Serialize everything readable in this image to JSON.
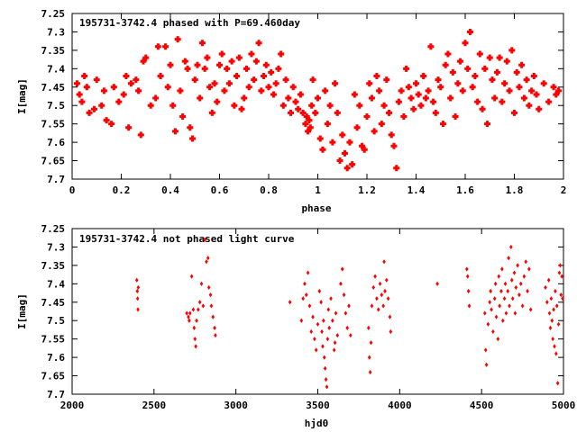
{
  "chart_data": [
    {
      "type": "scatter",
      "title": "195731-3742.4 phased with P=69.460day",
      "xlabel": "phase",
      "ylabel": "I[mag]",
      "xlim": [
        0,
        2
      ],
      "ylim": [
        7.25,
        7.7
      ],
      "y_inverted": true,
      "grid": false,
      "marker": "star",
      "color": "#ff0000",
      "xticks": [
        "0",
        "0.2",
        "0.4",
        "0.6",
        "0.8",
        "1",
        "1.2",
        "1.4",
        "1.6",
        "1.8",
        "2"
      ],
      "xtick_values": [
        0,
        0.2,
        0.4,
        0.6,
        0.8,
        1,
        1.2,
        1.4,
        1.6,
        1.8,
        2
      ],
      "yticks": [
        "7.25",
        "7.3",
        "7.35",
        "7.4",
        "7.45",
        "7.5",
        "7.55",
        "7.6",
        "7.65",
        "7.7"
      ],
      "ytick_values": [
        7.25,
        7.3,
        7.35,
        7.4,
        7.45,
        7.5,
        7.55,
        7.6,
        7.65,
        7.7
      ],
      "points": [
        [
          0.02,
          7.44
        ],
        [
          0.03,
          7.47
        ],
        [
          0.04,
          7.49
        ],
        [
          0.05,
          7.42
        ],
        [
          0.06,
          7.45
        ],
        [
          0.07,
          7.52
        ],
        [
          0.09,
          7.51
        ],
        [
          0.1,
          7.43
        ],
        [
          0.12,
          7.5
        ],
        [
          0.13,
          7.46
        ],
        [
          0.14,
          7.54
        ],
        [
          0.16,
          7.55
        ],
        [
          0.17,
          7.45
        ],
        [
          0.19,
          7.49
        ],
        [
          0.21,
          7.47
        ],
        [
          0.22,
          7.42
        ],
        [
          0.23,
          7.56
        ],
        [
          0.24,
          7.44
        ],
        [
          0.26,
          7.43
        ],
        [
          0.27,
          7.46
        ],
        [
          0.28,
          7.58
        ],
        [
          0.29,
          7.38
        ],
        [
          0.3,
          7.37
        ],
        [
          0.32,
          7.5
        ],
        [
          0.34,
          7.48
        ],
        [
          0.35,
          7.34
        ],
        [
          0.36,
          7.42
        ],
        [
          0.38,
          7.34
        ],
        [
          0.39,
          7.45
        ],
        [
          0.4,
          7.39
        ],
        [
          0.41,
          7.5
        ],
        [
          0.42,
          7.57
        ],
        [
          0.43,
          7.32
        ],
        [
          0.44,
          7.46
        ],
        [
          0.45,
          7.53
        ],
        [
          0.46,
          7.38
        ],
        [
          0.47,
          7.4
        ],
        [
          0.48,
          7.56
        ],
        [
          0.49,
          7.59
        ],
        [
          0.5,
          7.43
        ],
        [
          0.51,
          7.39
        ],
        [
          0.52,
          7.48
        ],
        [
          0.53,
          7.33
        ],
        [
          0.54,
          7.4
        ],
        [
          0.55,
          7.37
        ],
        [
          0.56,
          7.45
        ],
        [
          0.57,
          7.52
        ],
        [
          0.58,
          7.44
        ],
        [
          0.59,
          7.49
        ],
        [
          0.6,
          7.39
        ],
        [
          0.61,
          7.36
        ],
        [
          0.62,
          7.46
        ],
        [
          0.63,
          7.4
        ],
        [
          0.64,
          7.44
        ],
        [
          0.65,
          7.38
        ],
        [
          0.66,
          7.5
        ],
        [
          0.67,
          7.42
        ],
        [
          0.68,
          7.37
        ],
        [
          0.69,
          7.51
        ],
        [
          0.7,
          7.48
        ],
        [
          0.71,
          7.4
        ],
        [
          0.72,
          7.45
        ],
        [
          0.73,
          7.36
        ],
        [
          0.74,
          7.43
        ],
        [
          0.75,
          7.38
        ],
        [
          0.76,
          7.33
        ],
        [
          0.77,
          7.46
        ],
        [
          0.78,
          7.42
        ],
        [
          0.79,
          7.39
        ],
        [
          0.8,
          7.45
        ],
        [
          0.81,
          7.41
        ],
        [
          0.82,
          7.47
        ],
        [
          0.83,
          7.44
        ],
        [
          0.84,
          7.4
        ],
        [
          0.85,
          7.36
        ],
        [
          0.86,
          7.5
        ],
        [
          0.87,
          7.43
        ],
        [
          0.88,
          7.48
        ],
        [
          0.89,
          7.52
        ],
        [
          0.9,
          7.45
        ],
        [
          0.91,
          7.49
        ],
        [
          0.92,
          7.51
        ],
        [
          0.93,
          7.47
        ],
        [
          0.94,
          7.52
        ],
        [
          0.95,
          7.55
        ],
        [
          0.955,
          7.53
        ],
        [
          0.96,
          7.57
        ],
        [
          0.965,
          7.54
        ],
        [
          0.97,
          7.56
        ],
        [
          0.975,
          7.5
        ],
        [
          0.98,
          7.43
        ],
        [
          0.99,
          7.52
        ],
        [
          1.0,
          7.48
        ],
        [
          1.01,
          7.59
        ],
        [
          1.02,
          7.62
        ],
        [
          1.03,
          7.46
        ],
        [
          1.04,
          7.55
        ],
        [
          1.05,
          7.5
        ],
        [
          1.06,
          7.6
        ],
        [
          1.07,
          7.44
        ],
        [
          1.08,
          7.52
        ],
        [
          1.09,
          7.65
        ],
        [
          1.1,
          7.58
        ],
        [
          1.11,
          7.63
        ],
        [
          1.12,
          7.67
        ],
        [
          1.13,
          7.6
        ],
        [
          1.14,
          7.66
        ],
        [
          1.15,
          7.47
        ],
        [
          1.16,
          7.56
        ],
        [
          1.17,
          7.5
        ],
        [
          1.18,
          7.61
        ],
        [
          1.19,
          7.62
        ],
        [
          1.2,
          7.53
        ],
        [
          1.21,
          7.44
        ],
        [
          1.22,
          7.48
        ],
        [
          1.23,
          7.57
        ],
        [
          1.24,
          7.42
        ],
        [
          1.25,
          7.46
        ],
        [
          1.26,
          7.55
        ],
        [
          1.27,
          7.5
        ],
        [
          1.28,
          7.43
        ],
        [
          1.29,
          7.52
        ],
        [
          1.3,
          7.58
        ],
        [
          1.31,
          7.61
        ],
        [
          1.32,
          7.67
        ],
        [
          1.33,
          7.49
        ],
        [
          1.34,
          7.46
        ],
        [
          1.35,
          7.53
        ],
        [
          1.36,
          7.4
        ],
        [
          1.37,
          7.45
        ],
        [
          1.38,
          7.48
        ],
        [
          1.39,
          7.51
        ],
        [
          1.4,
          7.44
        ],
        [
          1.41,
          7.47
        ],
        [
          1.42,
          7.5
        ],
        [
          1.43,
          7.42
        ],
        [
          1.44,
          7.48
        ],
        [
          1.45,
          7.46
        ],
        [
          1.46,
          7.34
        ],
        [
          1.47,
          7.49
        ],
        [
          1.48,
          7.52
        ],
        [
          1.49,
          7.43
        ],
        [
          1.5,
          7.45
        ],
        [
          1.51,
          7.55
        ],
        [
          1.52,
          7.39
        ],
        [
          1.53,
          7.36
        ],
        [
          1.54,
          7.48
        ],
        [
          1.55,
          7.41
        ],
        [
          1.56,
          7.53
        ],
        [
          1.57,
          7.44
        ],
        [
          1.58,
          7.38
        ],
        [
          1.59,
          7.46
        ],
        [
          1.6,
          7.33
        ],
        [
          1.61,
          7.4
        ],
        [
          1.62,
          7.3
        ],
        [
          1.63,
          7.45
        ],
        [
          1.64,
          7.42
        ],
        [
          1.65,
          7.49
        ],
        [
          1.66,
          7.36
        ],
        [
          1.67,
          7.51
        ],
        [
          1.68,
          7.4
        ],
        [
          1.69,
          7.55
        ],
        [
          1.7,
          7.37
        ],
        [
          1.71,
          7.43
        ],
        [
          1.72,
          7.48
        ],
        [
          1.73,
          7.41
        ],
        [
          1.74,
          7.37
        ],
        [
          1.75,
          7.49
        ],
        [
          1.76,
          7.44
        ],
        [
          1.77,
          7.38
        ],
        [
          1.78,
          7.46
        ],
        [
          1.79,
          7.35
        ],
        [
          1.8,
          7.52
        ],
        [
          1.81,
          7.41
        ],
        [
          1.82,
          7.45
        ],
        [
          1.83,
          7.39
        ],
        [
          1.84,
          7.48
        ],
        [
          1.85,
          7.43
        ],
        [
          1.86,
          7.5
        ],
        [
          1.87,
          7.46
        ],
        [
          1.88,
          7.42
        ],
        [
          1.89,
          7.47
        ],
        [
          1.9,
          7.51
        ],
        [
          1.92,
          7.44
        ],
        [
          1.94,
          7.49
        ],
        [
          1.96,
          7.45
        ],
        [
          1.97,
          7.47
        ],
        [
          1.98,
          7.46
        ]
      ]
    },
    {
      "type": "scatter",
      "title": "195731-3742.4 not phased light curve",
      "xlabel": "hjd0",
      "ylabel": "I[mag]",
      "xlim": [
        2000,
        5000
      ],
      "ylim": [
        7.25,
        7.7
      ],
      "y_inverted": true,
      "grid": false,
      "marker": "diamond",
      "color": "#ff0000",
      "xticks": [
        "2000",
        "2500",
        "3000",
        "3500",
        "4000",
        "4500",
        "5000"
      ],
      "xtick_values": [
        2000,
        2500,
        3000,
        3500,
        4000,
        4500,
        5000
      ],
      "yticks": [
        "7.25",
        "7.3",
        "7.35",
        "7.4",
        "7.45",
        "7.5",
        "7.55",
        "7.6",
        "7.65",
        "7.7"
      ],
      "ytick_values": [
        7.25,
        7.3,
        7.35,
        7.4,
        7.45,
        7.5,
        7.55,
        7.6,
        7.65,
        7.7
      ],
      "points": [
        [
          2395,
          7.39
        ],
        [
          2398,
          7.42
        ],
        [
          2400,
          7.44
        ],
        [
          2402,
          7.47
        ],
        [
          2404,
          7.41
        ],
        [
          2700,
          7.48
        ],
        [
          2710,
          7.49
        ],
        [
          2715,
          7.5
        ],
        [
          2720,
          7.48
        ],
        [
          2730,
          7.38
        ],
        [
          2740,
          7.47
        ],
        [
          2745,
          7.52
        ],
        [
          2750,
          7.55
        ],
        [
          2755,
          7.57
        ],
        [
          2760,
          7.5
        ],
        [
          2770,
          7.47
        ],
        [
          2780,
          7.45
        ],
        [
          2790,
          7.4
        ],
        [
          2800,
          7.46
        ],
        [
          2810,
          7.28
        ],
        [
          2820,
          7.34
        ],
        [
          2830,
          7.33
        ],
        [
          2835,
          7.41
        ],
        [
          2845,
          7.43
        ],
        [
          2850,
          7.46
        ],
        [
          2860,
          7.49
        ],
        [
          2870,
          7.52
        ],
        [
          2875,
          7.54
        ],
        [
          3330,
          7.45
        ],
        [
          3400,
          7.5
        ],
        [
          3410,
          7.44
        ],
        [
          3420,
          7.4
        ],
        [
          3430,
          7.43
        ],
        [
          3440,
          7.37
        ],
        [
          3450,
          7.46
        ],
        [
          3460,
          7.53
        ],
        [
          3470,
          7.49
        ],
        [
          3480,
          7.55
        ],
        [
          3490,
          7.58
        ],
        [
          3500,
          7.51
        ],
        [
          3510,
          7.42
        ],
        [
          3520,
          7.45
        ],
        [
          3525,
          7.53
        ],
        [
          3530,
          7.57
        ],
        [
          3535,
          7.5
        ],
        [
          3540,
          7.6
        ],
        [
          3545,
          7.63
        ],
        [
          3550,
          7.66
        ],
        [
          3555,
          7.68
        ],
        [
          3560,
          7.55
        ],
        [
          3565,
          7.47
        ],
        [
          3570,
          7.52
        ],
        [
          3580,
          7.44
        ],
        [
          3590,
          7.5
        ],
        [
          3600,
          7.58
        ],
        [
          3605,
          7.56
        ],
        [
          3610,
          7.48
        ],
        [
          3620,
          7.54
        ],
        [
          3640,
          7.4
        ],
        [
          3650,
          7.36
        ],
        [
          3660,
          7.43
        ],
        [
          3670,
          7.48
        ],
        [
          3680,
          7.52
        ],
        [
          3690,
          7.46
        ],
        [
          3700,
          7.54
        ],
        [
          3810,
          7.52
        ],
        [
          3815,
          7.6
        ],
        [
          3820,
          7.64
        ],
        [
          3825,
          7.56
        ],
        [
          3830,
          7.46
        ],
        [
          3840,
          7.41
        ],
        [
          3850,
          7.38
        ],
        [
          3860,
          7.44
        ],
        [
          3870,
          7.47
        ],
        [
          3880,
          7.4
        ],
        [
          3890,
          7.43
        ],
        [
          3900,
          7.46
        ],
        [
          3905,
          7.34
        ],
        [
          3910,
          7.42
        ],
        [
          3920,
          7.39
        ],
        [
          3930,
          7.44
        ],
        [
          3940,
          7.49
        ],
        [
          3945,
          7.53
        ],
        [
          4230,
          7.4
        ],
        [
          4410,
          7.36
        ],
        [
          4415,
          7.38
        ],
        [
          4420,
          7.42
        ],
        [
          4425,
          7.46
        ],
        [
          4520,
          7.48
        ],
        [
          4525,
          7.58
        ],
        [
          4530,
          7.62
        ],
        [
          4540,
          7.51
        ],
        [
          4550,
          7.45
        ],
        [
          4555,
          7.42
        ],
        [
          4560,
          7.47
        ],
        [
          4570,
          7.53
        ],
        [
          4580,
          7.44
        ],
        [
          4585,
          7.4
        ],
        [
          4590,
          7.49
        ],
        [
          4600,
          7.55
        ],
        [
          4605,
          7.38
        ],
        [
          4610,
          7.46
        ],
        [
          4620,
          7.42
        ],
        [
          4625,
          7.36
        ],
        [
          4630,
          7.5
        ],
        [
          4640,
          7.44
        ],
        [
          4645,
          7.4
        ],
        [
          4650,
          7.48
        ],
        [
          4660,
          7.42
        ],
        [
          4665,
          7.33
        ],
        [
          4670,
          7.46
        ],
        [
          4680,
          7.3
        ],
        [
          4685,
          7.39
        ],
        [
          4690,
          7.44
        ],
        [
          4700,
          7.37
        ],
        [
          4705,
          7.48
        ],
        [
          4710,
          7.41
        ],
        [
          4720,
          7.35
        ],
        [
          4730,
          7.43
        ],
        [
          4740,
          7.4
        ],
        [
          4750,
          7.46
        ],
        [
          4760,
          7.38
        ],
        [
          4770,
          7.34
        ],
        [
          4780,
          7.42
        ],
        [
          4790,
          7.36
        ],
        [
          4800,
          7.47
        ],
        [
          4890,
          7.41
        ],
        [
          4900,
          7.45
        ],
        [
          4910,
          7.39
        ],
        [
          4915,
          7.48
        ],
        [
          4920,
          7.52
        ],
        [
          4925,
          7.44
        ],
        [
          4930,
          7.5
        ],
        [
          4935,
          7.55
        ],
        [
          4940,
          7.47
        ],
        [
          4945,
          7.57
        ],
        [
          4950,
          7.42
        ],
        [
          4955,
          7.59
        ],
        [
          4960,
          7.46
        ],
        [
          4965,
          7.67
        ],
        [
          4970,
          7.51
        ],
        [
          4975,
          7.37
        ],
        [
          4980,
          7.35
        ],
        [
          4985,
          7.43
        ],
        [
          4990,
          7.38
        ],
        [
          4995,
          7.44
        ]
      ]
    }
  ]
}
